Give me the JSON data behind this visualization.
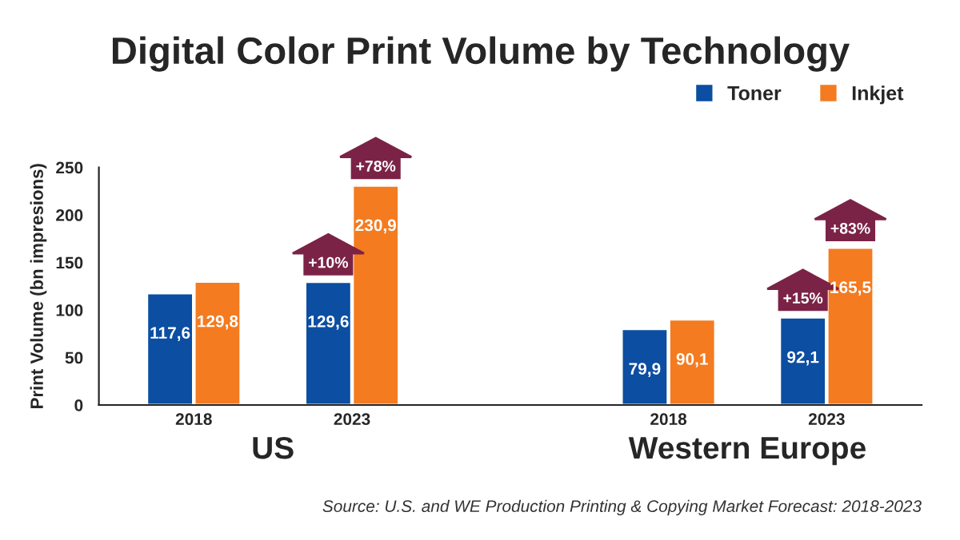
{
  "chart_data": {
    "type": "bar",
    "title": "Digital Color Print Volume by Technology",
    "ylabel": "Print Volume (bn impresions)",
    "categories": [
      "2018",
      "2023",
      null,
      "2018",
      "2023"
    ],
    "series": [
      {
        "name": "Toner",
        "color": "#0b4ea2",
        "values": [
          117.6,
          129.6,
          null,
          79.9,
          92.1
        ],
        "value_labels": [
          "117,6",
          "129,6",
          null,
          "79,9",
          "92,1"
        ]
      },
      {
        "name": "Inkjet",
        "color": "#f47b20",
        "values": [
          129.8,
          230.9,
          null,
          90.1,
          165.5
        ],
        "value_labels": [
          "129,8",
          "230,9",
          null,
          "90,1",
          "165,5"
        ]
      }
    ],
    "ylim": [
      0,
      250
    ],
    "yticks": [
      0,
      50,
      100,
      150,
      200,
      250
    ],
    "legend": "top right",
    "annotations": [
      "+10%",
      "+78%",
      "+15%",
      "+83%",
      "US",
      "Western Europe",
      "Source: U.S. and WE Production Printing & Copying Market Forecast: 2018-2023"
    ]
  }
}
